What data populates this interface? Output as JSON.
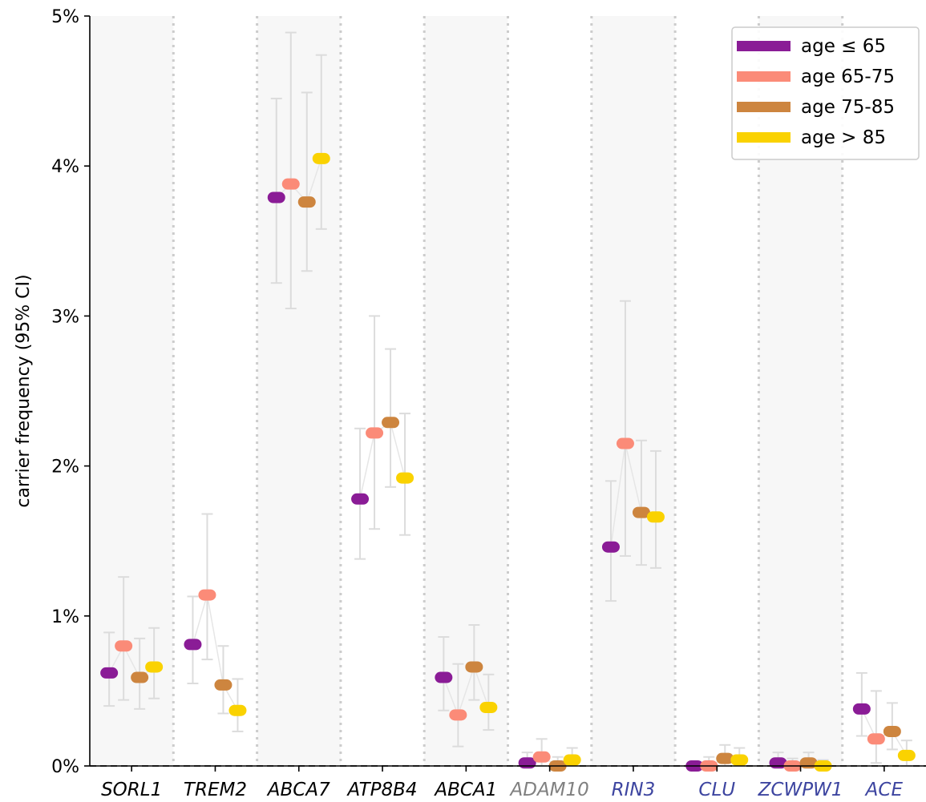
{
  "chart_data": {
    "type": "scatter",
    "ylabel": "carrier frequency (95% CI)",
    "ylim": [
      0,
      5
    ],
    "yticks": [
      "0%",
      "1%",
      "2%",
      "3%",
      "4%",
      "5%"
    ],
    "grid": false,
    "legend_position": "top-right",
    "categories": [
      {
        "label": "SORL1",
        "color": "#000000"
      },
      {
        "label": "TREM2",
        "color": "#000000"
      },
      {
        "label": "ABCA7",
        "color": "#000000"
      },
      {
        "label": "ATP8B4",
        "color": "#000000"
      },
      {
        "label": "ABCA1",
        "color": "#000000"
      },
      {
        "label": "ADAM10",
        "color": "#808080"
      },
      {
        "label": "RIN3",
        "color": "#3d45a0"
      },
      {
        "label": "CLU",
        "color": "#3d45a0"
      },
      {
        "label": "ZCWPW1",
        "color": "#3d45a0"
      },
      {
        "label": "ACE",
        "color": "#3d45a0"
      }
    ],
    "series": [
      {
        "name": "age ≤ 65",
        "color": "#8a1c96",
        "values": [
          0.62,
          0.81,
          3.79,
          1.78,
          0.59,
          0.02,
          1.46,
          0.0,
          0.02,
          0.38
        ],
        "ci_low": [
          0.4,
          0.55,
          3.22,
          1.38,
          0.37,
          0.0,
          1.1,
          0.0,
          0.0,
          0.2
        ],
        "ci_high": [
          0.89,
          1.13,
          4.45,
          2.25,
          0.86,
          0.09,
          1.9,
          0.03,
          0.09,
          0.62
        ]
      },
      {
        "name": "age 65-75",
        "color": "#fb8b78",
        "values": [
          0.8,
          1.14,
          3.88,
          2.22,
          0.34,
          0.06,
          2.15,
          0.0,
          0.0,
          0.18
        ],
        "ci_low": [
          0.44,
          0.71,
          3.05,
          1.58,
          0.13,
          0.0,
          1.4,
          0.0,
          0.0,
          0.02
        ],
        "ci_high": [
          1.26,
          1.68,
          4.89,
          3.0,
          0.68,
          0.18,
          3.1,
          0.06,
          0.05,
          0.5
        ]
      },
      {
        "name": "age 75-85",
        "color": "#cd853f",
        "values": [
          0.59,
          0.54,
          3.76,
          2.29,
          0.66,
          0.0,
          1.69,
          0.05,
          0.02,
          0.23
        ],
        "ci_low": [
          0.38,
          0.35,
          3.3,
          1.86,
          0.44,
          0.0,
          1.34,
          0.0,
          0.0,
          0.11
        ],
        "ci_high": [
          0.85,
          0.8,
          4.49,
          2.78,
          0.94,
          0.06,
          2.17,
          0.14,
          0.09,
          0.42
        ]
      },
      {
        "name": "age > 85",
        "color": "#fad201",
        "values": [
          0.66,
          0.37,
          4.05,
          1.92,
          0.39,
          0.04,
          1.66,
          0.04,
          0.0,
          0.07
        ],
        "ci_low": [
          0.45,
          0.23,
          3.58,
          1.54,
          0.24,
          0.0,
          1.32,
          0.0,
          0.0,
          0.0
        ],
        "ci_high": [
          0.92,
          0.58,
          4.74,
          2.35,
          0.61,
          0.12,
          2.1,
          0.12,
          0.04,
          0.17
        ]
      }
    ]
  }
}
